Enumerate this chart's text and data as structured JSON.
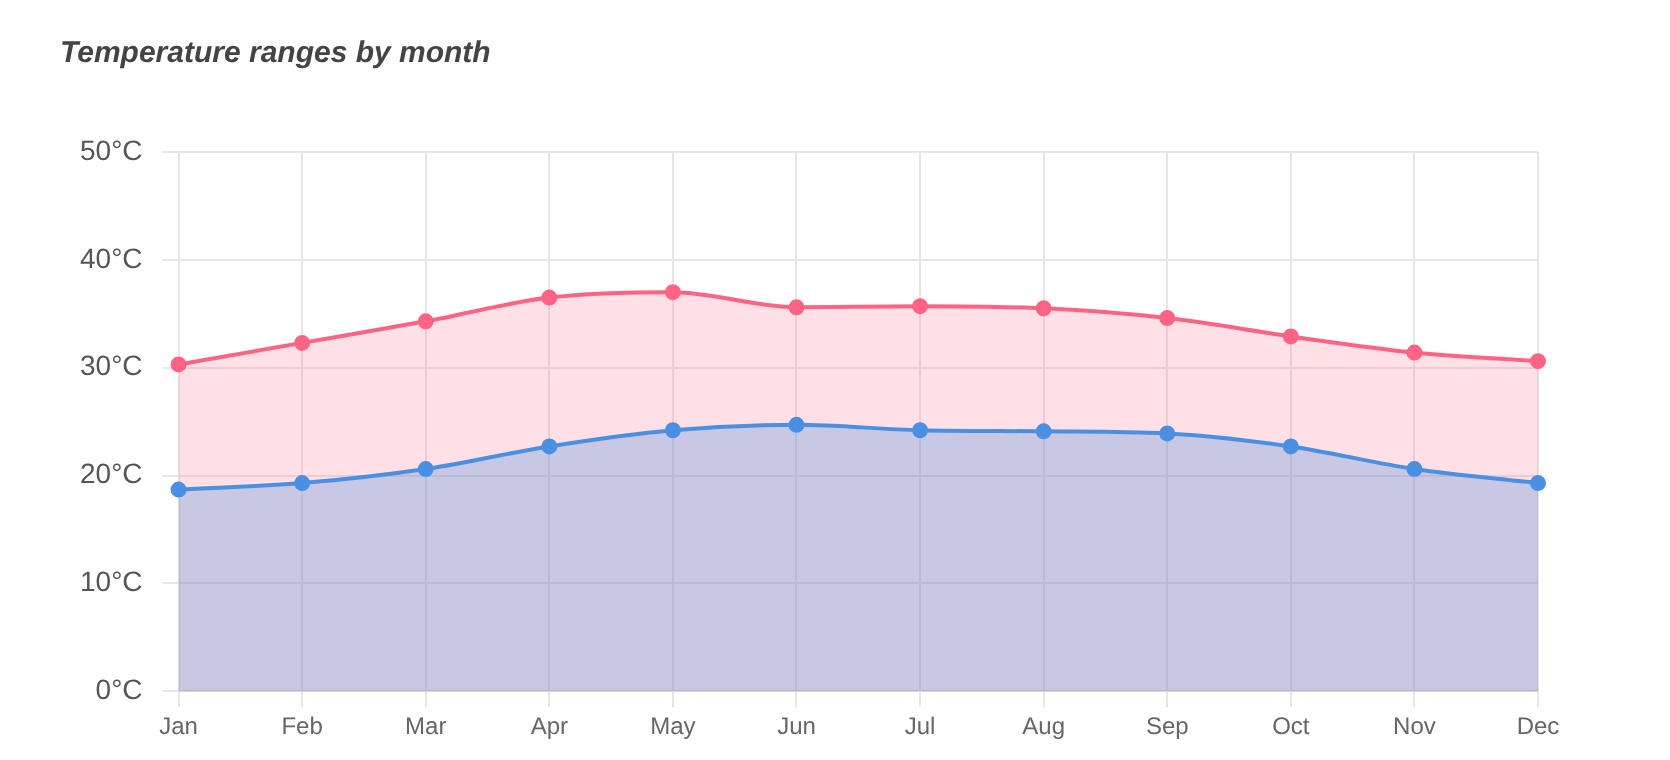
{
  "chart_data": {
    "type": "area",
    "title": "Temperature ranges by month",
    "categories": [
      "Jan",
      "Feb",
      "Mar",
      "Apr",
      "May",
      "Jun",
      "Jul",
      "Aug",
      "Sep",
      "Oct",
      "Nov",
      "Dec"
    ],
    "series": [
      {
        "color": "#ff6384",
        "values": [
          30.3,
          32.3,
          34.3,
          36.5,
          37.0,
          35.6,
          35.7,
          35.5,
          34.6,
          32.9,
          31.4,
          30.6
        ]
      },
      {
        "color": "#4a90e2",
        "values": [
          18.7,
          19.3,
          20.6,
          22.7,
          24.2,
          24.7,
          24.2,
          24.1,
          23.9,
          22.7,
          20.6,
          19.3
        ]
      }
    ],
    "ylim": [
      0,
      50
    ],
    "yticks": [
      {
        "value": 0,
        "label": "0°C"
      },
      {
        "value": 10,
        "label": "10°C"
      },
      {
        "value": 20,
        "label": "20°C"
      },
      {
        "value": 30,
        "label": "30°C"
      },
      {
        "value": 40,
        "label": "40°C"
      },
      {
        "value": 50,
        "label": "50°C"
      }
    ],
    "grid": true,
    "legend": false,
    "marker": "circle",
    "line_style": "solid"
  }
}
